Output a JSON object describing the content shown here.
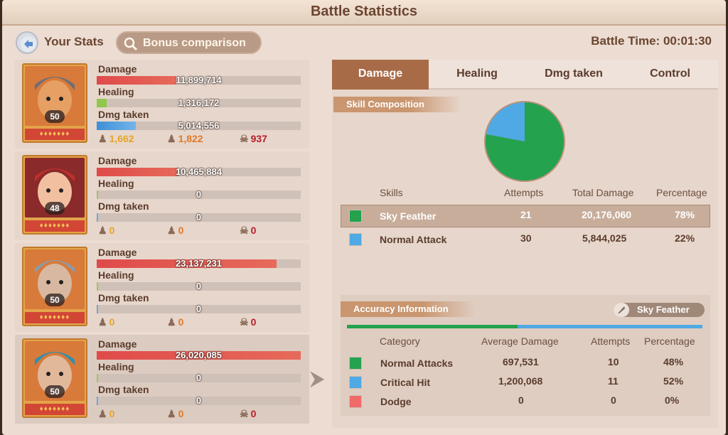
{
  "window": {
    "title": "Battle Statistics"
  },
  "header": {
    "your_stats_label": "Your Stats",
    "bonus_button_label": "Bonus comparison",
    "battle_time": "Battle Time: 00:01:30"
  },
  "heroes": [
    {
      "level": "50",
      "damage_label": "Damage",
      "damage": "11,899,714",
      "damage_fill": 0.39,
      "healing_label": "Healing",
      "healing": "1,316,172",
      "healing_fill": 0.05,
      "taken_label": "Dmg taken",
      "taken": "5,014,556",
      "taken_fill": 0.19,
      "stat1": "1,662",
      "stat2": "1,822",
      "stat3": "937"
    },
    {
      "level": "48",
      "damage_label": "Damage",
      "damage": "10,465,884",
      "damage_fill": 0.4,
      "healing_label": "Healing",
      "healing": "0",
      "healing_fill": 0,
      "taken_label": "Dmg taken",
      "taken": "0",
      "taken_fill": 0,
      "stat1": "0",
      "stat2": "0",
      "stat3": "0"
    },
    {
      "level": "50",
      "damage_label": "Damage",
      "damage": "23,137,231",
      "damage_fill": 0.88,
      "healing_label": "Healing",
      "healing": "0",
      "healing_fill": 0,
      "taken_label": "Dmg taken",
      "taken": "0",
      "taken_fill": 0,
      "stat1": "0",
      "stat2": "0",
      "stat3": "0"
    },
    {
      "level": "50",
      "damage_label": "Damage",
      "damage": "26,020,085",
      "damage_fill": 1.0,
      "healing_label": "Healing",
      "healing": "0",
      "healing_fill": 0,
      "taken_label": "Dmg taken",
      "taken": "0",
      "taken_fill": 0,
      "stat1": "0",
      "stat2": "0",
      "stat3": "0"
    }
  ],
  "tabs": [
    "Damage",
    "Healing",
    "Dmg taken",
    "Control"
  ],
  "skill_section": {
    "label": "Skill Composition",
    "headers": {
      "skills": "Skills",
      "attempts": "Attempts",
      "total": "Total Damage",
      "pct": "Percentage"
    },
    "rows": [
      {
        "name": "Sky Feather",
        "attempts": "21",
        "total": "20,176,060",
        "pct": "78%",
        "color": "#24a24e"
      },
      {
        "name": "Normal Attack",
        "attempts": "30",
        "total": "5,844,025",
        "pct": "22%",
        "color": "#4fa9e4"
      }
    ]
  },
  "chart_data": {
    "type": "pie",
    "labels": [
      "Sky Feather",
      "Normal Attack"
    ],
    "values": [
      78,
      22
    ],
    "colors": [
      "#24a24e",
      "#4fa9e4"
    ]
  },
  "accuracy": {
    "label": "Accuracy Information",
    "skill_button": "Sky Feather",
    "headers": {
      "category": "Category",
      "avg": "Average Damage",
      "attempts": "Attempts",
      "pct": "Percentage"
    },
    "rows": [
      {
        "name": "Normal Attacks",
        "avg": "697,531",
        "attempts": "10",
        "pct": "48%",
        "color": "#24a24e"
      },
      {
        "name": "Critical Hit",
        "avg": "1,200,068",
        "attempts": "11",
        "pct": "52%",
        "color": "#4fa9e4"
      },
      {
        "name": "Dodge",
        "avg": "0",
        "attempts": "0",
        "pct": "0%",
        "color": "#f06a6a"
      }
    ],
    "bar_fractions": [
      0.48,
      0.52
    ]
  }
}
